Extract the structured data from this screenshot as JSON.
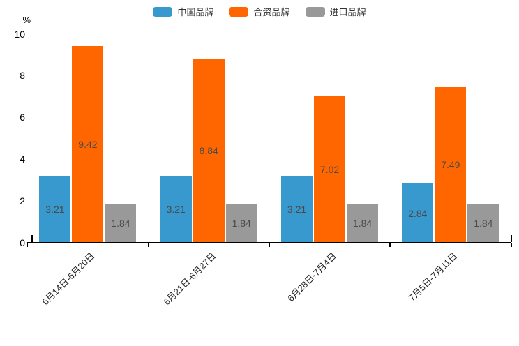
{
  "chart_data": {
    "type": "bar",
    "title": "",
    "unit_label": "%",
    "xlabel": "",
    "ylabel": "%",
    "categories": [
      "6月14日-6月20日",
      "6月21日-6月27日",
      "6月28日-7月4日",
      "7月5日-7月11日"
    ],
    "series": [
      {
        "name": "中国品牌",
        "color": "#3899CE",
        "values": [
          3.21,
          3.21,
          3.21,
          2.84
        ]
      },
      {
        "name": "合资品牌",
        "color": "#FF6600",
        "values": [
          9.42,
          8.84,
          7.02,
          7.49
        ]
      },
      {
        "name": "进口品牌",
        "color": "#999999",
        "values": [
          1.84,
          1.84,
          1.84,
          1.84
        ]
      }
    ],
    "ylim": [
      0,
      10
    ],
    "yticks": [
      0,
      2,
      4,
      6,
      8,
      10
    ],
    "grid": false,
    "legend_position": "top",
    "value_labels": true,
    "value_label_color": "#4a4a4a",
    "axis_color": "#000000",
    "background_color": "#ffffff"
  }
}
